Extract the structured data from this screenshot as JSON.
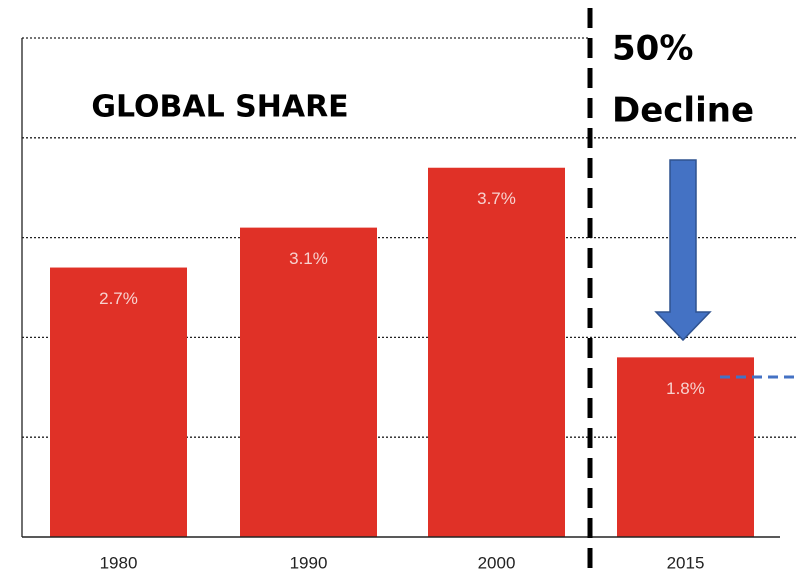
{
  "chart_data": {
    "type": "bar",
    "title": "GLOBAL SHARE",
    "categories": [
      "1980",
      "1990",
      "2000",
      "2015"
    ],
    "values": [
      2.7,
      3.1,
      3.7,
      1.8
    ],
    "value_labels": [
      "2.7%",
      "3.1%",
      "3.7%",
      "1.8%"
    ],
    "color": "#e03127",
    "ylim": [
      0,
      5
    ],
    "yticks": [
      0,
      1,
      2,
      3,
      4,
      5
    ],
    "grid": true,
    "annotation": [
      "50%",
      "Decline"
    ]
  }
}
